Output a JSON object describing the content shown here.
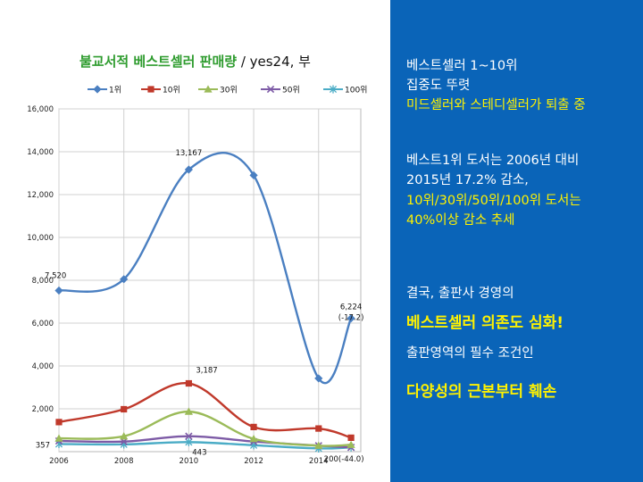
{
  "chart_data": {
    "type": "line",
    "title": "불교서적  베스트셀러 판매량",
    "title_suffix": " / yes24, 부",
    "x": [
      2006,
      2008,
      2010,
      2012,
      2014,
      2015
    ],
    "x_ticks": [
      "2006",
      "2008",
      "2010",
      "2012",
      "2014"
    ],
    "y_ticks": [
      "2,000",
      "4,000",
      "6,000",
      "8,000",
      "10,000",
      "12,000",
      "14,000",
      "16,000"
    ],
    "ylim": [
      0,
      16000
    ],
    "xlim": [
      2006,
      2015.3
    ],
    "grid": true,
    "legend_position": "top",
    "series": [
      {
        "name": "1위",
        "color": "#4a7fc1",
        "marker": "diamond",
        "values": [
          7520,
          8050,
          13167,
          12900,
          3420,
          6224
        ]
      },
      {
        "name": "10위",
        "color": "#c0392b",
        "marker": "square",
        "values": [
          1380,
          1980,
          3187,
          1150,
          1080,
          650
        ]
      },
      {
        "name": "30위",
        "color": "#9bbb59",
        "marker": "triangle",
        "values": [
          620,
          720,
          1870,
          600,
          280,
          320
        ]
      },
      {
        "name": "50위",
        "color": "#7d5ba6",
        "marker": "x",
        "values": [
          500,
          470,
          720,
          470,
          280,
          200
        ]
      },
      {
        "name": "100위",
        "color": "#4bacc6",
        "marker": "star",
        "values": [
          357,
          340,
          443,
          300,
          150,
          200
        ]
      }
    ],
    "annotations": [
      {
        "text": "7,520",
        "x": 2006,
        "y": 7520
      },
      {
        "text": "13,167",
        "x": 2010,
        "y": 13167
      },
      {
        "text": "3,187",
        "x": 2010,
        "y": 3187
      },
      {
        "text": "6,224",
        "x": 2015,
        "y": 6224
      },
      {
        "text": "(-17.2)",
        "x": 2015,
        "y": 6224
      },
      {
        "text": "357",
        "x": 2006,
        "y": 357
      },
      {
        "text": "443",
        "x": 2010,
        "y": 443
      },
      {
        "text": "200(-44.0)",
        "x": 2015,
        "y": 200
      }
    ]
  },
  "panel": {
    "line1": "베스트셀러 1~10위",
    "line2": "집중도 뚜렷",
    "line3": "미드셀러와 스테디셀러가 퇴출 중",
    "line4": "베스트1위 도서는 2006년 대비",
    "line5": "2015년 17.2% 감소,",
    "line6": "10위/30위/50위/100위 도서는",
    "line7": "40%이상 감소 추세",
    "line8": "결국,  출판사 경영의",
    "line9": "베스트셀러 의존도 심화!",
    "line10": "출판영역의 필수 조건인",
    "line11": "다양성의 근본부터 훼손"
  },
  "colors": {
    "panel_bg": "#0a64b8",
    "highlight_yellow": "#fff200",
    "title_green": "#2f9c2f"
  }
}
